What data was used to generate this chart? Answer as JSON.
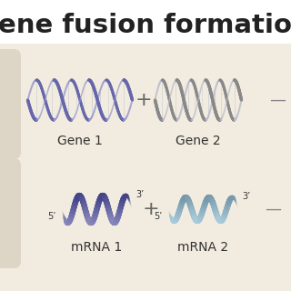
{
  "background_color": "#f2ece0",
  "top_bar_color": "#ffffff",
  "title_text": "ene fusion formatio",
  "title_fontsize": 21,
  "title_fontweight": "bold",
  "title_color": "#222222",
  "gene1_label": "Gene 1",
  "gene2_label": "Gene 2",
  "mrna1_label": "mRNA 1",
  "mrna2_label": "mRNA 2",
  "label_fontsize": 10,
  "label_color": "#333333",
  "dna1_color_main": "#6666aa",
  "dna1_color_light": "#9999cc",
  "dna1_color_dark": "#333366",
  "dna2_color_main": "#888888",
  "dna2_color_light": "#bbbbcc",
  "dna2_color_dark": "#444444",
  "mrna1_color_dark": "#44448a",
  "mrna1_color_light": "#8888bb",
  "mrna2_color_dark": "#7799aa",
  "mrna2_color_light": "#aaccdd",
  "plus_fontsize": 16,
  "plus_color": "#666666",
  "dash_color": "#888888",
  "left_pill_color": "#ddd5c5",
  "five_prime": "5’",
  "three_prime": "3’",
  "prime_fontsize": 7,
  "top_section_bg": "#ffffff"
}
